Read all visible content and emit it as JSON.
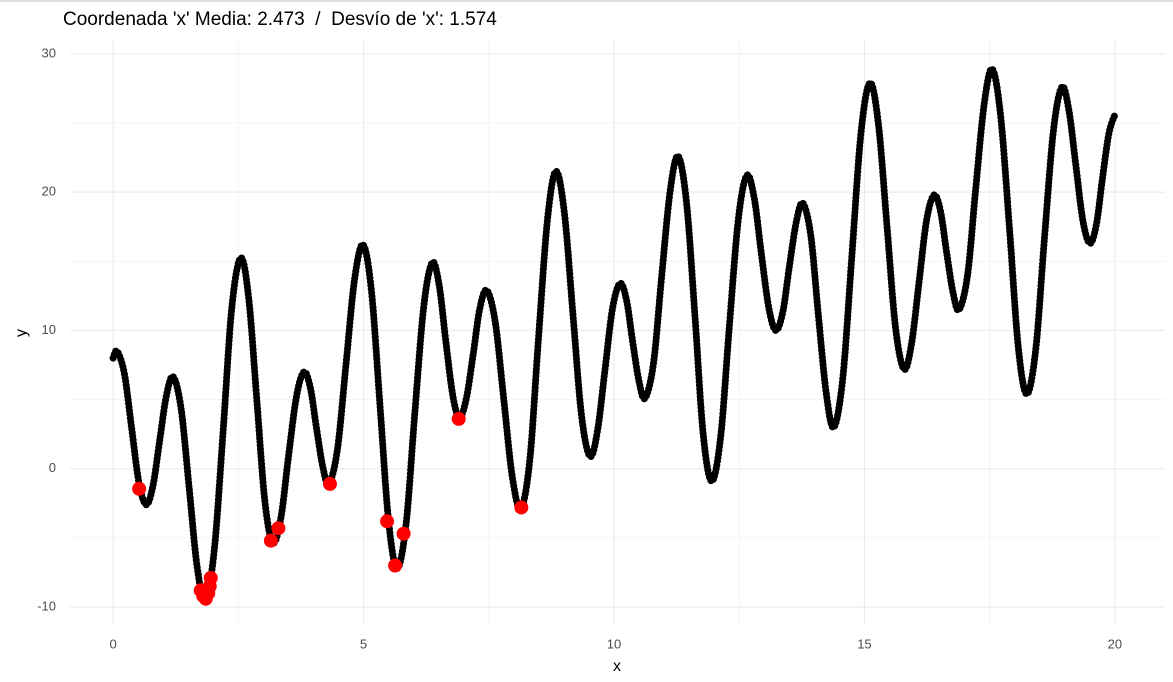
{
  "chart_data": {
    "type": "scatter",
    "title": "Coordenada 'x' Media: 2.473  /  Desvío de 'x': 1.574",
    "x_label": "x",
    "y_label": "y",
    "xlim": [
      -0.86,
      21.0
    ],
    "ylim": [
      -11.3,
      31.0
    ],
    "xticks": [
      0,
      5,
      10,
      15,
      20
    ],
    "yticks": [
      -10,
      0,
      10,
      20,
      30
    ],
    "grid": true,
    "series": [
      {
        "color": "#000000",
        "x": [
          0,
          0.08,
          0.225,
          0.37,
          0.515,
          0.66,
          0.795,
          0.93,
          1.065,
          1.2,
          1.36,
          1.52,
          1.68,
          1.84,
          2.02,
          2.2,
          2.37,
          2.55,
          2.71,
          2.87,
          3.03,
          3.19,
          3.35,
          3.5,
          3.66,
          3.81,
          3.94,
          4.06,
          4.19,
          4.31,
          4.48,
          4.65,
          4.82,
          4.99,
          5.16,
          5.33,
          5.5,
          5.67,
          5.85,
          6.02,
          6.2,
          6.37,
          6.51,
          6.64,
          6.78,
          6.91,
          7.05,
          7.19,
          7.32,
          7.46,
          7.63,
          7.8,
          7.97,
          8.14,
          8.32,
          8.49,
          8.67,
          8.84,
          9.01,
          9.18,
          9.35,
          9.52,
          9.67,
          9.82,
          9.97,
          10.12,
          10.25,
          10.37,
          10.5,
          10.62,
          10.79,
          10.95,
          11.12,
          11.28,
          11.45,
          11.62,
          11.78,
          11.95,
          12.13,
          12.3,
          12.48,
          12.65,
          12.8,
          12.94,
          13.09,
          13.23,
          13.37,
          13.5,
          13.64,
          13.77,
          13.93,
          14.08,
          14.24,
          14.39,
          14.57,
          14.75,
          14.93,
          15.11,
          15.28,
          15.45,
          15.62,
          15.79,
          15.94,
          16.09,
          16.24,
          16.39,
          16.52,
          16.64,
          16.77,
          16.89,
          17.06,
          17.22,
          17.39,
          17.55,
          17.72,
          17.9,
          18.07,
          18.24,
          18.42,
          18.59,
          18.77,
          18.94,
          19.08,
          19.22,
          19.36,
          19.5,
          19.63,
          19.75,
          19.88,
          20
        ],
        "values": [
          8.0,
          8.5,
          6.88,
          2.95,
          -0.98,
          -2.6,
          -1.25,
          2.03,
          5.3,
          6.65,
          4.29,
          -1.43,
          -7.14,
          -9.5,
          -5.89,
          2.88,
          11.64,
          15.25,
          12.24,
          4.95,
          -2.34,
          -5.35,
          -3.55,
          0.83,
          5.2,
          7.0,
          5.82,
          2.95,
          0.08,
          -1.1,
          1.43,
          7.55,
          13.67,
          16.2,
          12.78,
          4.5,
          -3.78,
          -7.2,
          -3.97,
          3.85,
          11.67,
          14.9,
          13.26,
          9.3,
          5.34,
          3.7,
          5.04,
          8.3,
          11.56,
          12.9,
          10.59,
          5.0,
          -0.59,
          -2.9,
          0.66,
          9.3,
          17.94,
          21.5,
          18.49,
          11.2,
          3.91,
          0.9,
          2.73,
          7.15,
          11.58,
          13.4,
          12.19,
          9.25,
          6.31,
          5.1,
          7.66,
          13.85,
          20.05,
          22.6,
          19.17,
          10.85,
          2.53,
          -0.9,
          2.33,
          10.15,
          17.97,
          21.2,
          19.56,
          15.6,
          11.64,
          10.0,
          11.34,
          14.6,
          17.86,
          19.2,
          16.83,
          11.1,
          5.37,
          3.0,
          6.64,
          15.45,
          24.26,
          27.9,
          24.88,
          17.55,
          10.22,
          7.2,
          9.04,
          13.5,
          17.96,
          19.8,
          18.59,
          15.65,
          12.71,
          11.5,
          14.04,
          20.2,
          26.36,
          28.9,
          25.47,
          17.15,
          8.83,
          5.4,
          8.64,
          16.5,
          24.36,
          27.6,
          25.95,
          21.95,
          17.95,
          16.3,
          17.66,
          20.95,
          24.24,
          25.6
        ]
      },
      {
        "color": "#ff0000",
        "x": [
          0.52,
          1.75,
          1.8,
          1.85,
          1.9,
          1.93,
          1.95,
          3.15,
          3.3,
          4.33,
          5.47,
          5.63,
          5.8,
          6.9,
          8.15
        ],
        "values": [
          -1.45,
          -8.8,
          -9.2,
          -9.4,
          -9.0,
          -8.5,
          -7.9,
          -5.2,
          -4.3,
          -1.1,
          -3.8,
          -7.0,
          -4.7,
          3.6,
          -2.8
        ]
      }
    ]
  }
}
